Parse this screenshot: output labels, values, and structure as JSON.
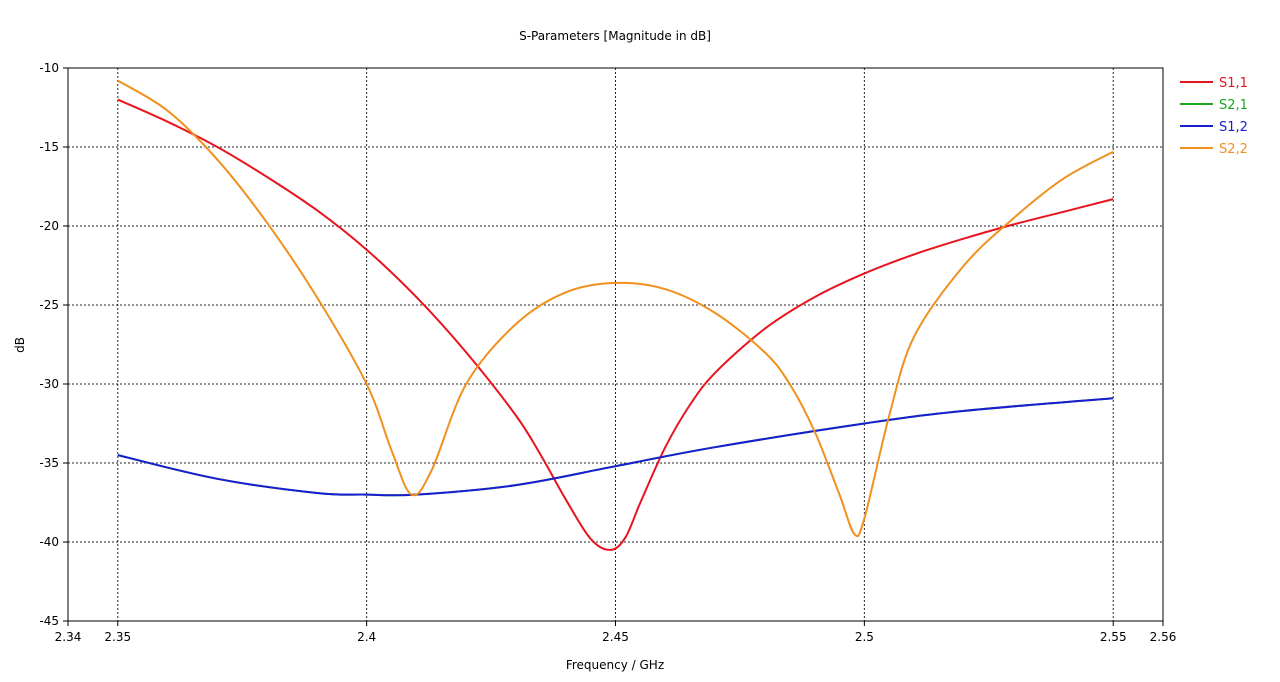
{
  "chart_data": {
    "type": "line",
    "title": "S-Parameters [Magnitude in dB]",
    "xlabel": "Frequency / GHz",
    "ylabel": "dB",
    "xlim": [
      2.34,
      2.56
    ],
    "ylim": [
      -45,
      -10
    ],
    "x_ticks": [
      2.34,
      2.35,
      2.4,
      2.45,
      2.5,
      2.55,
      2.56
    ],
    "x_tick_labels": [
      "2.34",
      "2.35",
      "2.4",
      "2.45",
      "2.5",
      "2.55",
      "2.56"
    ],
    "x_grid": [
      2.35,
      2.4,
      2.45,
      2.5,
      2.55
    ],
    "y_ticks": [
      -45,
      -40,
      -35,
      -30,
      -25,
      -20,
      -15,
      -10
    ],
    "y_tick_labels": [
      "-45",
      "-40",
      "-35",
      "-30",
      "-25",
      "-20",
      "-15",
      "-10"
    ],
    "grid": true,
    "legend_position": "top-right",
    "series": [
      {
        "name": "S1,1",
        "color": "#e8141e",
        "x": [
          2.35,
          2.36,
          2.37,
          2.38,
          2.39,
          2.4,
          2.41,
          2.42,
          2.43,
          2.435,
          2.44,
          2.445,
          2.449,
          2.452,
          2.455,
          2.46,
          2.465,
          2.47,
          2.48,
          2.49,
          2.5,
          2.51,
          2.52,
          2.53,
          2.54,
          2.55
        ],
        "y": [
          -12.0,
          -13.4,
          -15.0,
          -16.9,
          -19.0,
          -21.5,
          -24.5,
          -28.0,
          -32.0,
          -34.5,
          -37.3,
          -39.8,
          -40.5,
          -39.7,
          -37.5,
          -34.0,
          -31.3,
          -29.3,
          -26.5,
          -24.5,
          -23.0,
          -21.8,
          -20.8,
          -19.9,
          -19.1,
          -18.3
        ]
      },
      {
        "name": "S2,1",
        "color": "#1ca81c",
        "x": [
          2.35,
          2.37,
          2.39,
          2.4,
          2.41,
          2.43,
          2.45,
          2.47,
          2.5,
          2.52,
          2.55
        ],
        "y": [
          -34.5,
          -36.0,
          -36.9,
          -37.0,
          -37.0,
          -36.4,
          -35.2,
          -34.0,
          -32.5,
          -31.7,
          -30.9
        ]
      },
      {
        "name": "S1,2",
        "color": "#1a1ed2",
        "x": [
          2.35,
          2.37,
          2.39,
          2.4,
          2.41,
          2.43,
          2.45,
          2.47,
          2.5,
          2.52,
          2.55
        ],
        "y": [
          -34.5,
          -36.0,
          -36.9,
          -37.0,
          -37.0,
          -36.4,
          -35.2,
          -34.0,
          -32.5,
          -31.7,
          -30.9
        ]
      },
      {
        "name": "S2,2",
        "color": "#f0901e",
        "x": [
          2.35,
          2.36,
          2.37,
          2.38,
          2.39,
          2.4,
          2.405,
          2.409,
          2.413,
          2.42,
          2.43,
          2.44,
          2.45,
          2.46,
          2.47,
          2.48,
          2.485,
          2.49,
          2.495,
          2.498,
          2.5,
          2.505,
          2.51,
          2.52,
          2.53,
          2.54,
          2.55
        ],
        "y": [
          -10.8,
          -12.7,
          -15.8,
          -19.8,
          -24.5,
          -30.0,
          -34.2,
          -37.0,
          -35.5,
          -30.0,
          -26.2,
          -24.2,
          -23.6,
          -24.0,
          -25.5,
          -28.0,
          -30.0,
          -33.0,
          -37.0,
          -39.5,
          -38.5,
          -32.0,
          -27.0,
          -22.5,
          -19.5,
          -17.0,
          -15.3
        ]
      }
    ]
  }
}
